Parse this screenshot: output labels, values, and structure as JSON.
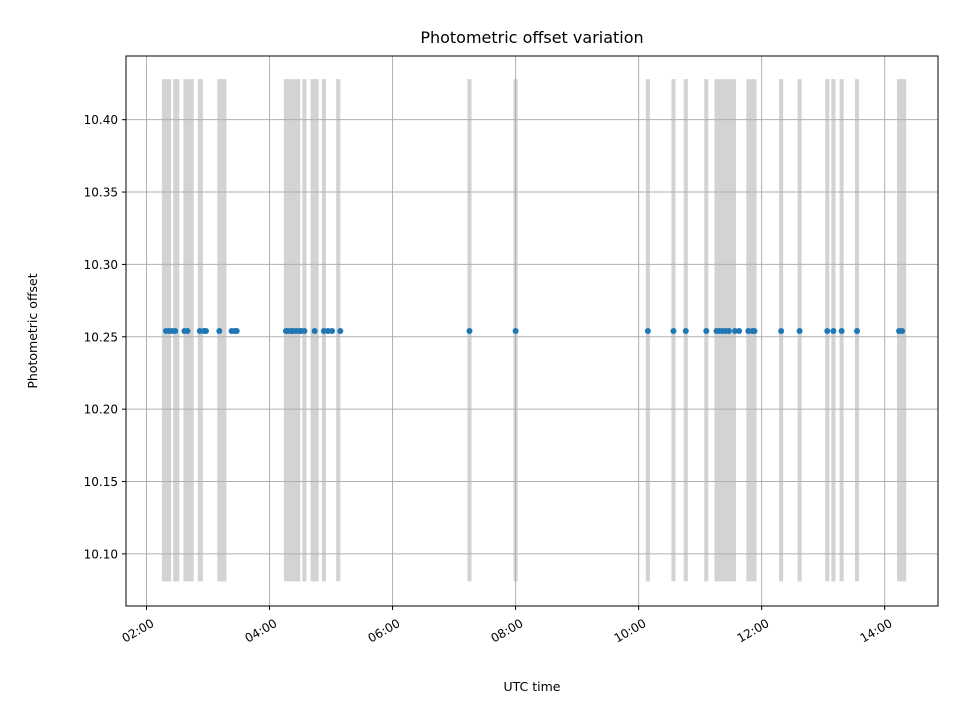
{
  "chart_data": {
    "type": "scatter",
    "title": "Photometric offset variation",
    "xlabel": "UTC time",
    "ylabel": "Photometric offset",
    "grid": true,
    "x_ticks": [
      "02:00",
      "04:00",
      "06:00",
      "08:00",
      "10:00",
      "12:00",
      "14:00"
    ],
    "y_ticks": [
      "10.10",
      "10.15",
      "10.20",
      "10.25",
      "10.30",
      "10.35",
      "10.40"
    ],
    "xlim": [
      "01:40",
      "14:52"
    ],
    "ylim": [
      10.064,
      10.444
    ],
    "band_range": [
      10.081,
      10.428
    ],
    "band_color": "#d3d3d3",
    "point_color": "#1f77b4",
    "series": [
      {
        "x": [
          "02:19",
          "02:22",
          "02:25",
          "02:28",
          "02:37",
          "02:40",
          "02:52",
          "02:56",
          "02:58",
          "03:11",
          "03:23",
          "03:26",
          "03:28",
          "04:16",
          "04:18",
          "04:21",
          "04:23",
          "04:26",
          "04:29",
          "04:31",
          "04:34",
          "04:44",
          "04:53",
          "04:57",
          "05:01",
          "05:09",
          "07:15",
          "08:00",
          "10:09",
          "10:34",
          "10:46",
          "11:06",
          "11:16",
          "11:19",
          "11:22",
          "11:25",
          "11:28",
          "11:34",
          "11:38",
          "11:47",
          "11:51",
          "11:53",
          "12:19",
          "12:37",
          "13:04",
          "13:10",
          "13:18",
          "13:33",
          "14:14",
          "14:17"
        ],
        "y": [
          10.254,
          10.254,
          10.254,
          10.254,
          10.254,
          10.254,
          10.254,
          10.254,
          10.254,
          10.254,
          10.254,
          10.254,
          10.254,
          10.254,
          10.254,
          10.254,
          10.254,
          10.254,
          10.254,
          10.254,
          10.254,
          10.254,
          10.254,
          10.254,
          10.254,
          10.254,
          10.254,
          10.254,
          10.254,
          10.254,
          10.254,
          10.254,
          10.254,
          10.254,
          10.254,
          10.254,
          10.254,
          10.254,
          10.254,
          10.254,
          10.254,
          10.254,
          10.254,
          10.254,
          10.254,
          10.254,
          10.254,
          10.254,
          10.254,
          10.254
        ]
      }
    ],
    "bands": [
      [
        "02:15",
        "02:24"
      ],
      [
        "02:26",
        "02:32"
      ],
      [
        "02:36",
        "02:46"
      ],
      [
        "02:50",
        "02:55"
      ],
      [
        "03:09",
        "03:18"
      ],
      [
        "04:14",
        "04:30"
      ],
      [
        "04:32",
        "04:36"
      ],
      [
        "04:40",
        "04:48"
      ],
      [
        "04:51",
        "04:55"
      ],
      [
        "05:05",
        "05:09"
      ],
      [
        "07:13",
        "07:17"
      ],
      [
        "07:58",
        "08:02"
      ],
      [
        "10:07",
        "10:11"
      ],
      [
        "10:32",
        "10:36"
      ],
      [
        "10:44",
        "10:48"
      ],
      [
        "11:04",
        "11:08"
      ],
      [
        "11:14",
        "11:35"
      ],
      [
        "11:45",
        "11:55"
      ],
      [
        "12:17",
        "12:21"
      ],
      [
        "12:35",
        "12:39"
      ],
      [
        "13:02",
        "13:06"
      ],
      [
        "13:08",
        "13:12"
      ],
      [
        "13:16",
        "13:20"
      ],
      [
        "13:31",
        "13:35"
      ],
      [
        "14:12",
        "14:21"
      ]
    ]
  }
}
